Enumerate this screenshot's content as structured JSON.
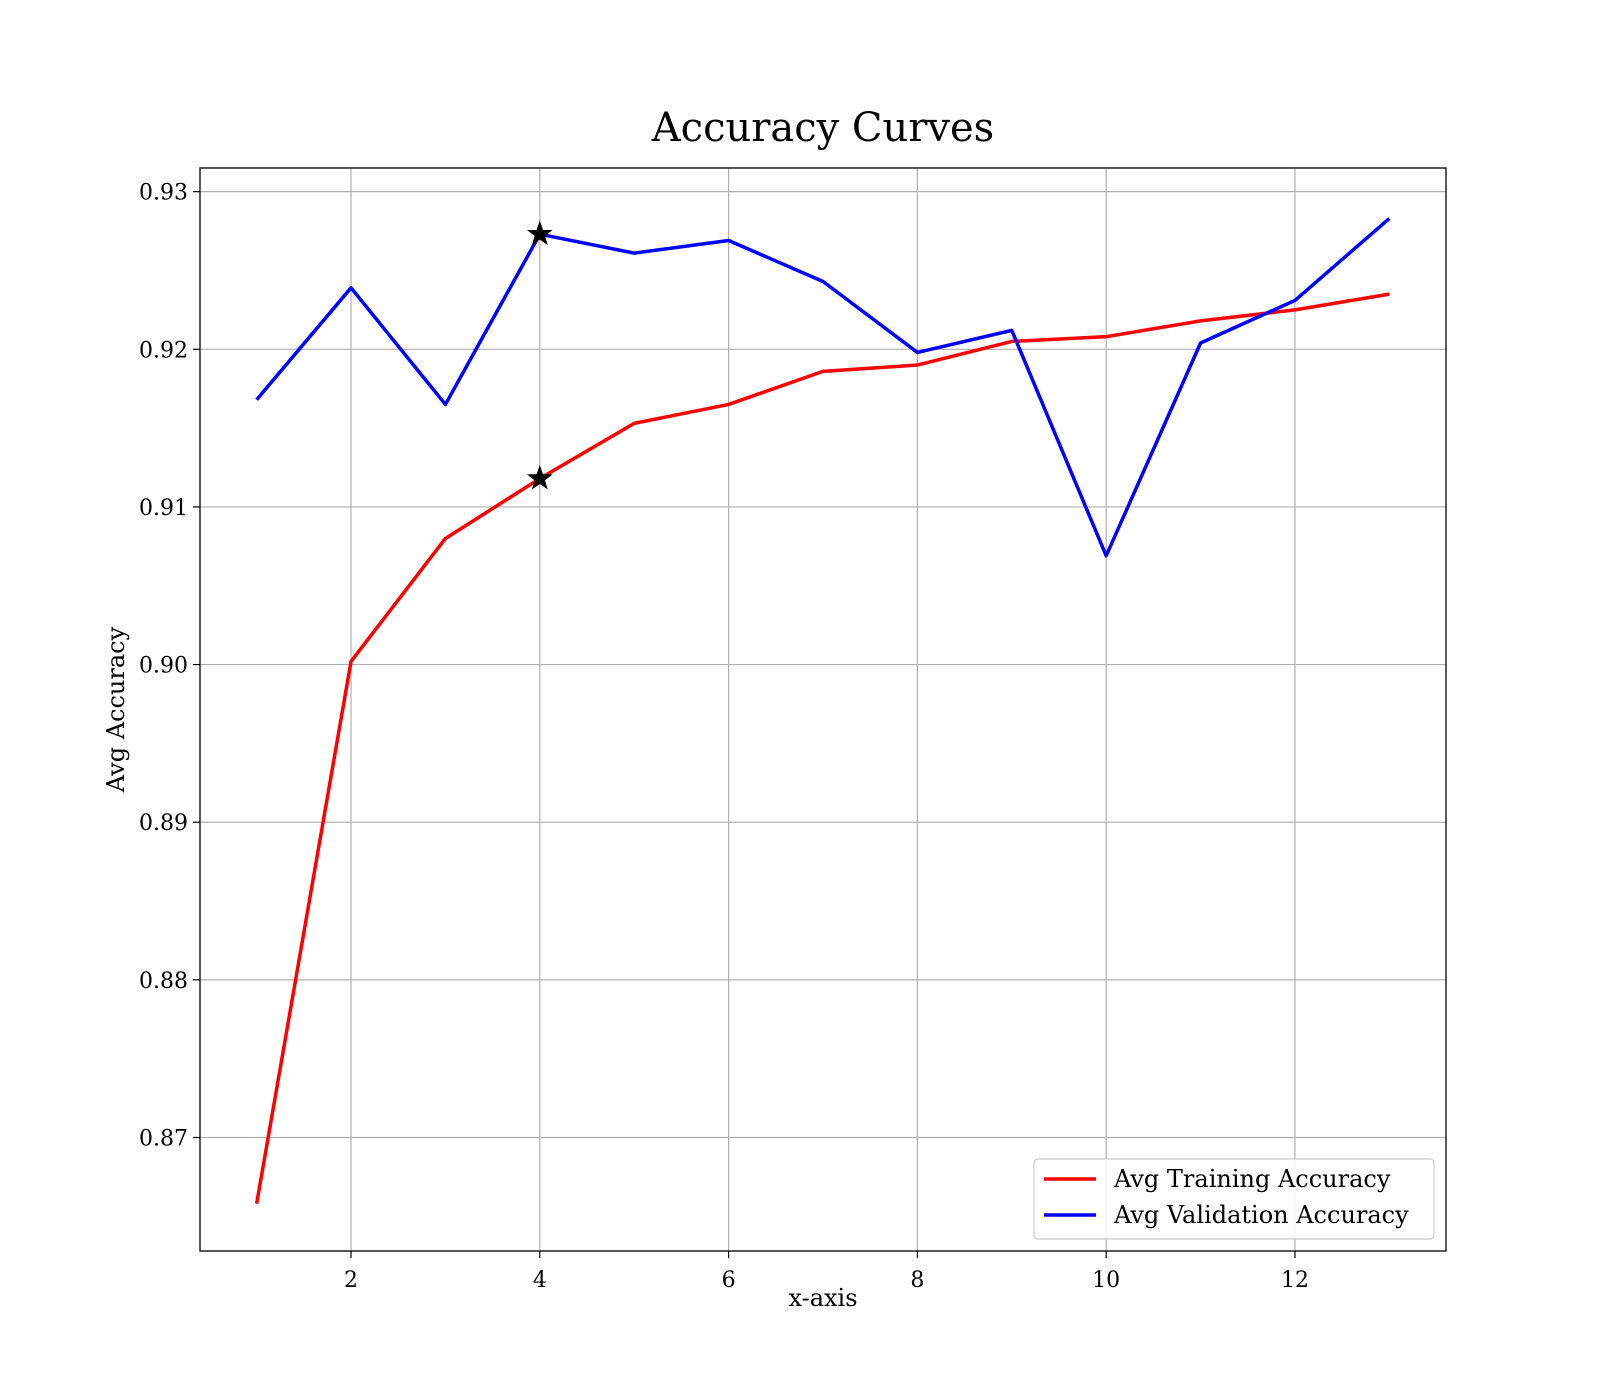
{
  "chart_data": {
    "type": "line",
    "title": "Accuracy Curves",
    "xlabel": "x-axis",
    "ylabel": "Avg Accuracy",
    "xlim": [
      0.4,
      13.6
    ],
    "ylim": [
      0.8628,
      0.9315
    ],
    "x_ticks": [
      2,
      4,
      6,
      8,
      10,
      12
    ],
    "y_ticks": [
      0.87,
      0.88,
      0.89,
      0.9,
      0.91,
      0.92,
      0.93
    ],
    "x_tick_labels": [
      "2",
      "4",
      "6",
      "8",
      "10",
      "12"
    ],
    "y_tick_labels": [
      "0.87",
      "0.88",
      "0.89",
      "0.90",
      "0.91",
      "0.92",
      "0.93"
    ],
    "grid": true,
    "legend_position": "lower-right",
    "x": [
      1,
      2,
      3,
      4,
      5,
      6,
      7,
      8,
      9,
      10,
      11,
      12,
      13
    ],
    "series": [
      {
        "name": "Avg Training Accuracy",
        "color": "#ff0000",
        "values": [
          0.8658,
          0.9002,
          0.908,
          0.9118,
          0.9153,
          0.9165,
          0.9186,
          0.919,
          0.9205,
          0.9208,
          0.9218,
          0.9225,
          0.9235
        ]
      },
      {
        "name": "Avg Validation Accuracy",
        "color": "#0000ff",
        "values": [
          0.9168,
          0.9239,
          0.9165,
          0.9273,
          0.9261,
          0.9269,
          0.9243,
          0.9198,
          0.9212,
          0.9069,
          0.9204,
          0.9231,
          0.9283
        ]
      }
    ],
    "markers": [
      {
        "x": 4,
        "y": 0.9273,
        "symbol": "star",
        "series": "Avg Validation Accuracy"
      },
      {
        "x": 4,
        "y": 0.9118,
        "symbol": "star",
        "series": "Avg Training Accuracy"
      }
    ]
  }
}
